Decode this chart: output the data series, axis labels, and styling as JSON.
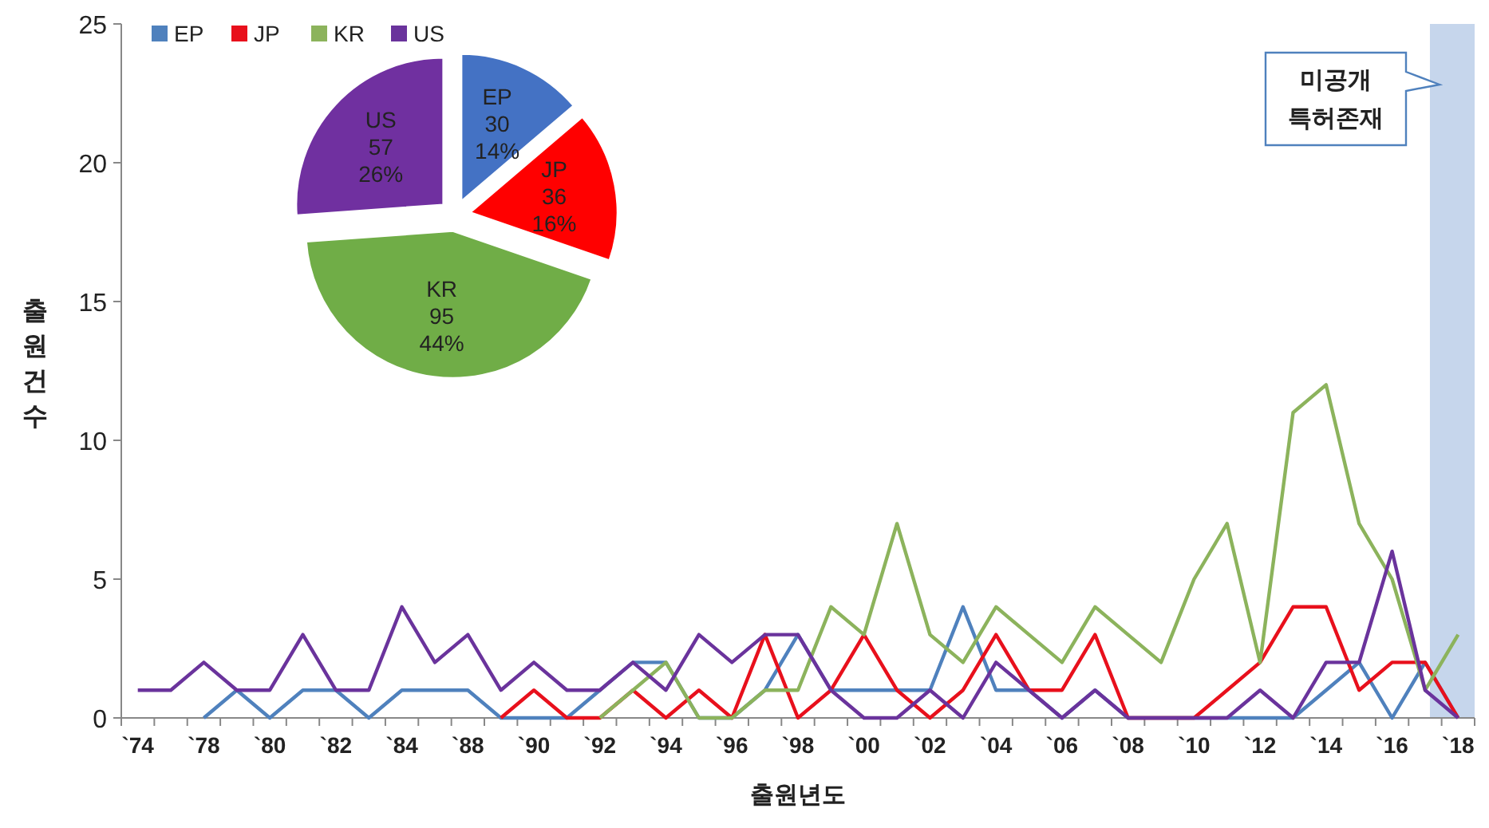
{
  "chart_data": [
    {
      "type": "line",
      "xlabel": "출원년도",
      "ylabel": "출원건수",
      "categories": [
        "`74",
        null,
        "`78",
        null,
        "`80",
        null,
        "`82",
        null,
        "`84",
        null,
        "`88",
        null,
        "`90",
        null,
        "`92",
        null,
        "`94",
        null,
        "`96",
        null,
        "`98",
        null,
        "`00",
        null,
        "`02",
        null,
        "`04",
        null,
        "`06",
        null,
        "`08",
        null,
        "`10",
        null,
        "`12",
        null,
        "`14",
        null,
        "`16",
        null,
        "`18"
      ],
      "ylim": [
        0,
        25
      ],
      "yticks": [
        0,
        5,
        10,
        15,
        20,
        25
      ],
      "grid": false,
      "legend": "top left",
      "marker": "none",
      "line_style": "solid",
      "series": [
        {
          "name": "EP",
          "color": "#4f81bd",
          "values": [
            null,
            null,
            0,
            1,
            0,
            1,
            1,
            0,
            1,
            1,
            1,
            0,
            0,
            0,
            1,
            2,
            2,
            0,
            0,
            1,
            3,
            1,
            1,
            1,
            1,
            4,
            1,
            1,
            0,
            1,
            0,
            0,
            0,
            0,
            0,
            0,
            1,
            2,
            0,
            2,
            0
          ]
        },
        {
          "name": "JP",
          "color": "#e8101c",
          "values": [
            null,
            null,
            null,
            null,
            null,
            null,
            null,
            null,
            null,
            null,
            null,
            0,
            1,
            0,
            0,
            1,
            0,
            1,
            0,
            3,
            0,
            1,
            3,
            1,
            0,
            1,
            3,
            1,
            1,
            3,
            0,
            0,
            0,
            1,
            2,
            4,
            4,
            1,
            2,
            2,
            0
          ]
        },
        {
          "name": "KR",
          "color": "#8cb35c",
          "values": [
            null,
            null,
            null,
            null,
            null,
            null,
            null,
            null,
            null,
            null,
            null,
            null,
            null,
            null,
            0,
            1,
            2,
            0,
            0,
            1,
            1,
            4,
            3,
            7,
            3,
            2,
            4,
            3,
            2,
            4,
            3,
            2,
            5,
            7,
            2,
            11,
            12,
            7,
            5,
            1,
            3
          ]
        },
        {
          "name": "US",
          "color": "#6a339c",
          "values": [
            1,
            1,
            2,
            1,
            1,
            3,
            1,
            1,
            4,
            2,
            3,
            1,
            2,
            1,
            1,
            2,
            1,
            3,
            2,
            3,
            3,
            1,
            0,
            0,
            1,
            0,
            2,
            1,
            0,
            1,
            0,
            0,
            0,
            0,
            1,
            0,
            2,
            2,
            6,
            1,
            0
          ]
        }
      ],
      "annotations": [
        "미공개\n특허존재"
      ]
    },
    {
      "type": "pie",
      "categories": [
        "EP",
        "JP",
        "KR",
        "US"
      ],
      "values": [
        30,
        36,
        95,
        57
      ],
      "colors": [
        "#4472c4",
        "#ff0000",
        "#70ad47",
        "#7030a0"
      ],
      "value_labels": [
        "30\n14%",
        "36\n16%",
        "95\n44%",
        "57\n26%"
      ]
    }
  ]
}
